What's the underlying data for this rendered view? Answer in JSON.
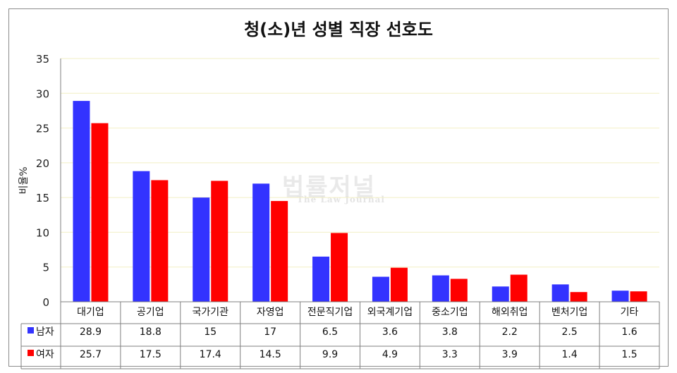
{
  "chart_data": {
    "type": "bar",
    "title": "청(소)년 성별 직장 선호도",
    "ylabel": "비율%",
    "xlabel": "",
    "ylim": [
      0,
      35
    ],
    "yticks": [
      0,
      5,
      10,
      15,
      20,
      25,
      30,
      35
    ],
    "grid": true,
    "categories": [
      "대기업",
      "공기업",
      "국가기관",
      "자영업",
      "전문직기업",
      "외국계기업",
      "중소기업",
      "해외취업",
      "벤처기업",
      "기타"
    ],
    "series": [
      {
        "name": "남자",
        "color": "#3333ff",
        "values": [
          28.9,
          18.8,
          15,
          17,
          6.5,
          3.6,
          3.8,
          2.2,
          2.5,
          1.6
        ]
      },
      {
        "name": "여자",
        "color": "#ff0000",
        "values": [
          25.7,
          17.5,
          17.4,
          14.5,
          9.9,
          4.9,
          3.3,
          3.9,
          1.4,
          1.5
        ]
      }
    ],
    "table_rows": [
      {
        "label": "남자",
        "values": [
          "28.9",
          "18.8",
          "15",
          "17",
          "6.5",
          "3.6",
          "3.8",
          "2.2",
          "2.5",
          "1.6"
        ]
      },
      {
        "label": "여자",
        "values": [
          "25.7",
          "17.5",
          "17.4",
          "14.5",
          "9.9",
          "4.9",
          "3.3",
          "3.9",
          "1.4",
          "1.5"
        ]
      }
    ]
  },
  "watermark": {
    "main": "법률저널",
    "sub": "The Law Journal"
  }
}
